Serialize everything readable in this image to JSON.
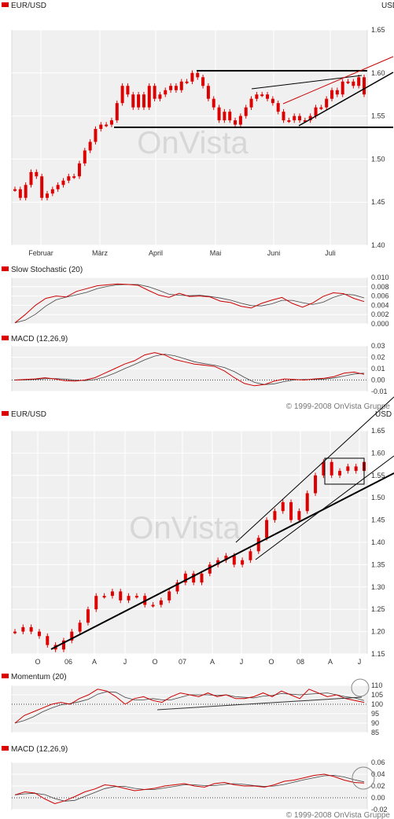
{
  "colors": {
    "candle": "#dd0000",
    "panel_bg": "#f0f0f0",
    "line_ref": "#444444",
    "trend": "#000000",
    "thin_red": "#cc0000"
  },
  "copyright": "© 1999-2008 OnVista Gruppe",
  "watermark": "OnVista",
  "chart_data": [
    {
      "type": "line",
      "title": "EUR/USD",
      "unit": "USD",
      "x_labels": [
        "Februar",
        "März",
        "April",
        "Mai",
        "Juni",
        "Juli"
      ],
      "yticks": [
        "1.65",
        "1.60",
        "1.55",
        "1.50",
        "1.45",
        "1.40"
      ],
      "ylim": [
        1.4,
        1.65
      ],
      "series": [
        {
          "values": [
            1.465,
            1.455,
            1.47,
            1.485,
            1.48,
            1.455,
            1.46,
            1.465,
            1.47,
            1.475,
            1.48,
            1.48,
            1.495,
            1.51,
            1.52,
            1.535,
            1.54,
            1.54,
            1.545,
            1.565,
            1.585,
            1.575,
            1.56,
            1.575,
            1.56,
            1.585,
            1.57,
            1.575,
            1.58,
            1.585,
            1.58,
            1.59,
            1.59,
            1.6,
            1.595,
            1.585,
            1.57,
            1.56,
            1.545,
            1.555,
            1.545,
            1.54,
            1.55,
            1.56,
            1.57,
            1.575,
            1.575,
            1.57,
            1.565,
            1.555,
            1.545,
            1.545,
            1.55,
            1.545,
            1.545,
            1.55,
            1.56,
            1.56,
            1.57,
            1.58,
            1.575,
            1.59,
            1.59,
            1.585,
            1.595,
            1.575
          ]
        }
      ],
      "grid": true
    },
    {
      "type": "line",
      "title": "Slow Stochastic (20)",
      "yticks": [
        "0.010",
        "0.008",
        "0.006",
        "0.004",
        "0.002",
        "0.000"
      ],
      "ylim": [
        0,
        0.01
      ],
      "series": [
        {
          "values": [
            0.0002,
            0.002,
            0.004,
            0.0055,
            0.006,
            0.0058,
            0.007,
            0.0076,
            0.0082,
            0.0084,
            0.0086,
            0.0085,
            0.0083,
            0.0072,
            0.0062,
            0.0057,
            0.0066,
            0.0059,
            0.006,
            0.0058,
            0.0049,
            0.0046,
            0.0038,
            0.0034,
            0.0044,
            0.0051,
            0.0057,
            0.0044,
            0.0036,
            0.0045,
            0.0059,
            0.0067,
            0.0065,
            0.0055,
            0.0048
          ]
        }
      ]
    },
    {
      "type": "line",
      "title": "MACD (12,26,9)",
      "yticks": [
        "0.03",
        "0.02",
        "0.01",
        "0.00",
        "-0.01"
      ],
      "ylim": [
        -0.01,
        0.03
      ],
      "series": [
        {
          "values": [
            0,
            0.0005,
            0.001,
            0.002,
            0.001,
            -0.0005,
            -0.001,
            0,
            0.002,
            0.006,
            0.01,
            0.014,
            0.017,
            0.022,
            0.024,
            0.022,
            0.018,
            0.016,
            0.014,
            0.013,
            0.012,
            0.008,
            0.002,
            -0.003,
            -0.005,
            -0.004,
            -0.001,
            0.001,
            0.0005,
            0,
            0.001,
            0.0015,
            0.003,
            0.006,
            0.007,
            0.005
          ]
        }
      ]
    },
    {
      "type": "line",
      "title": "EUR/USD",
      "unit": "USD",
      "x_labels": [
        "O",
        "06",
        "A",
        "J",
        "O",
        "07",
        "A",
        "J",
        "O",
        "08",
        "A",
        "J"
      ],
      "yticks": [
        "1.65",
        "1.60",
        "1.55",
        "1.50",
        "1.45",
        "1.40",
        "1.35",
        "1.30",
        "1.25",
        "1.20",
        "1.15"
      ],
      "ylim": [
        1.15,
        1.65
      ],
      "series": [
        {
          "values": [
            1.2,
            1.21,
            1.2,
            1.19,
            1.17,
            1.16,
            1.18,
            1.2,
            1.22,
            1.25,
            1.28,
            1.28,
            1.29,
            1.27,
            1.28,
            1.28,
            1.26,
            1.26,
            1.27,
            1.29,
            1.31,
            1.33,
            1.31,
            1.33,
            1.35,
            1.36,
            1.37,
            1.35,
            1.36,
            1.38,
            1.41,
            1.45,
            1.47,
            1.49,
            1.45,
            1.47,
            1.51,
            1.55,
            1.58,
            1.55,
            1.56,
            1.57,
            1.56,
            1.58
          ]
        }
      ],
      "grid": true
    },
    {
      "type": "line",
      "title": "Momentum (20)",
      "yticks": [
        "110",
        "105",
        "100",
        "95",
        "90",
        "85"
      ],
      "ylim": [
        85,
        110
      ],
      "series": [
        {
          "values": [
            90,
            94,
            96,
            98,
            100,
            101,
            100,
            103,
            105,
            108,
            107,
            104,
            100,
            103,
            104,
            102,
            101,
            104,
            106,
            105,
            104,
            106,
            104,
            105,
            103,
            103,
            104,
            106,
            104,
            107,
            105,
            103,
            108,
            106,
            104,
            105,
            103,
            102,
            101
          ]
        }
      ]
    },
    {
      "type": "line",
      "title": "MACD (12,26,9)",
      "yticks": [
        "0.06",
        "0.04",
        "0.02",
        "0.00",
        "-0.02"
      ],
      "ylim": [
        -0.02,
        0.06
      ],
      "series": [
        {
          "values": [
            0.005,
            0.01,
            0.008,
            -0.002,
            -0.01,
            -0.005,
            0.002,
            0.01,
            0.015,
            0.022,
            0.02,
            0.016,
            0.012,
            0.014,
            0.016,
            0.02,
            0.022,
            0.024,
            0.02,
            0.018,
            0.024,
            0.026,
            0.022,
            0.02,
            0.02,
            0.018,
            0.022,
            0.028,
            0.03,
            0.034,
            0.038,
            0.04,
            0.036,
            0.03,
            0.026,
            0.025
          ]
        }
      ]
    }
  ]
}
